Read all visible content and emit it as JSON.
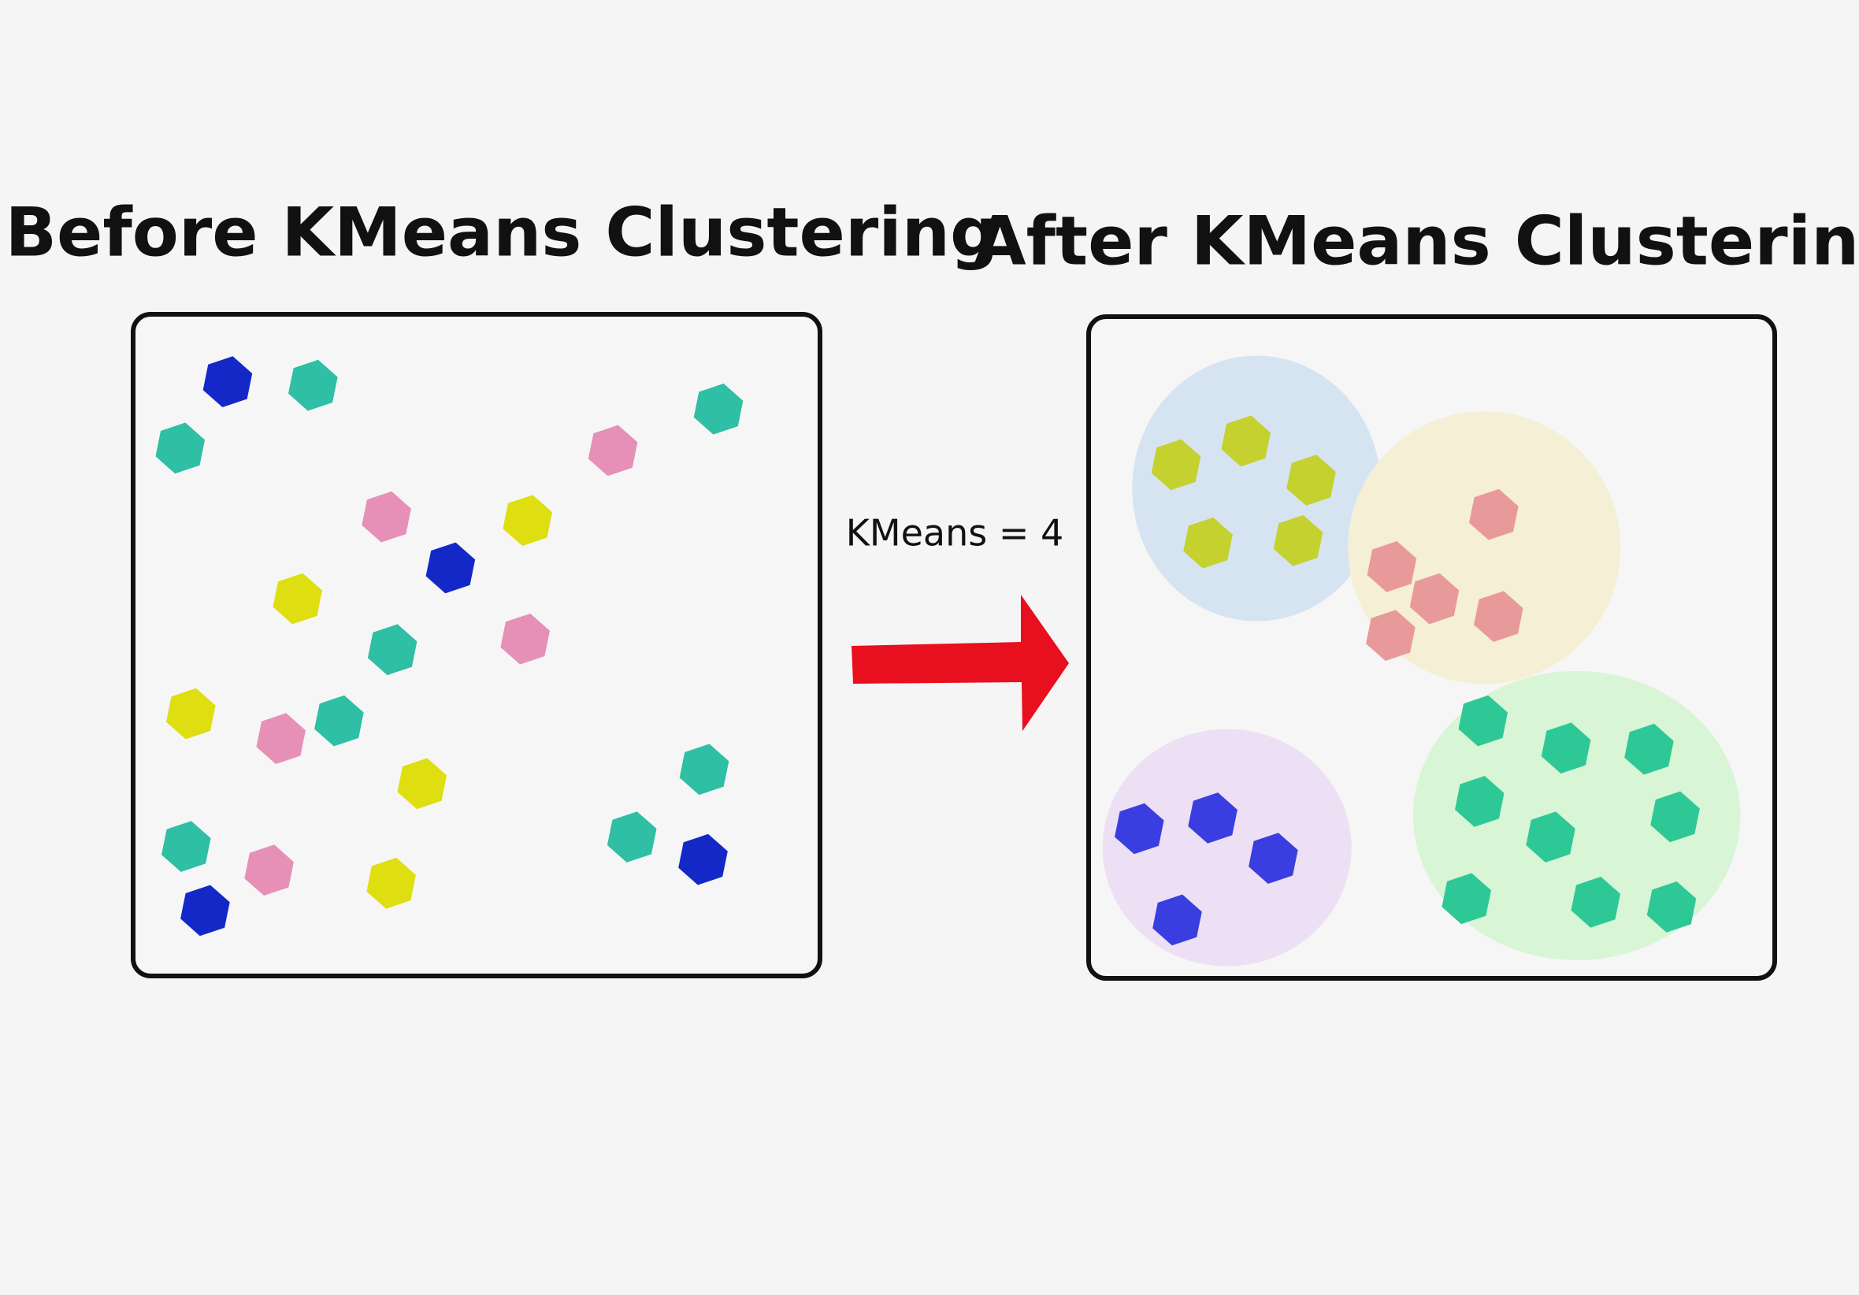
{
  "before_panel": {
    "title": "Before KMeans Clustering"
  },
  "arrow": {
    "label": "KMeans = 4"
  },
  "after_panel": {
    "title": "After KMeans Clustering"
  }
}
